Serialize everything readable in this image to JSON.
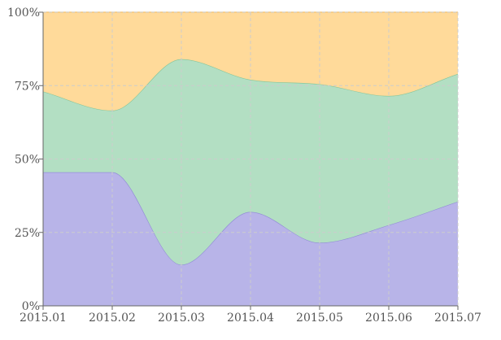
{
  "chart_data": {
    "type": "area",
    "stacked": true,
    "percent": true,
    "smooth": true,
    "title": "",
    "xlabel": "",
    "ylabel": "",
    "categories": [
      "2015.01",
      "2015.02",
      "2015.03",
      "2015.04",
      "2015.05",
      "2015.06",
      "2015.07"
    ],
    "y_ticks": [
      "0%",
      "25%",
      "50%",
      "75%",
      "100%"
    ],
    "ylim": [
      0,
      100
    ],
    "grid": true,
    "series": [
      {
        "values": [
          45.5,
          45.5,
          14,
          32,
          21.5,
          27.5,
          35.5
        ],
        "color": "#b8b4e8",
        "stroke": "#8f89d6"
      },
      {
        "values": [
          27.5,
          21,
          70,
          45,
          54,
          44,
          43.5
        ],
        "color": "#b3dfc3",
        "stroke": "#86c59b"
      },
      {
        "values": [
          27,
          33.5,
          16,
          23,
          24.5,
          28.5,
          21
        ],
        "color": "#ffda9a",
        "stroke": "#f0c070"
      }
    ]
  }
}
